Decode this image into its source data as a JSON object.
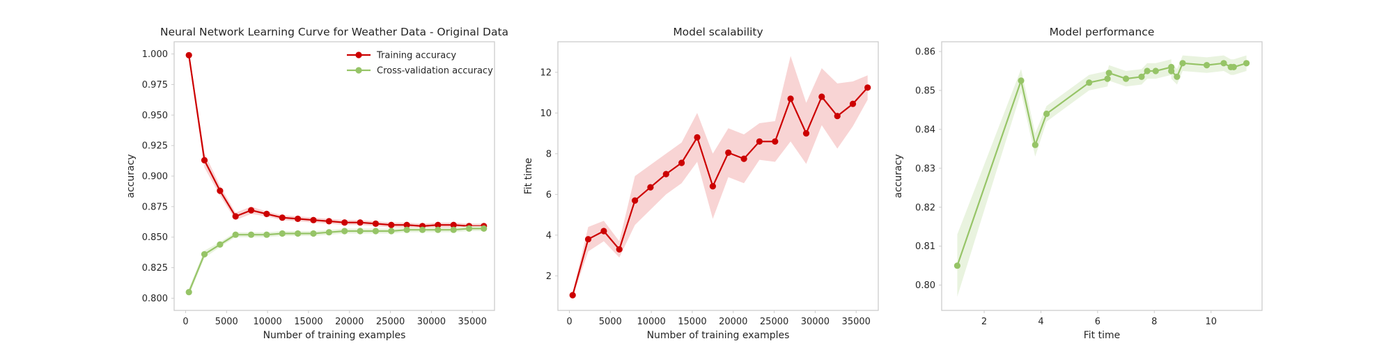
{
  "colors": {
    "train": "#cc0000",
    "train_band": "#f8d4d4",
    "cv": "#96c467",
    "cv_band": "#e9f3df",
    "frame": "#cccccc",
    "text": "#262626"
  },
  "chart_data": [
    {
      "type": "line",
      "title": "Neural Network Learning Curve for Weather Data - Original Data",
      "xlabel": "Number of training examples",
      "ylabel": "accuracy",
      "xlim": [
        -1400,
        37700
      ],
      "ylim": [
        0.79,
        1.01
      ],
      "xticks": [
        0,
        5000,
        10000,
        15000,
        20000,
        25000,
        30000,
        35000
      ],
      "xtick_labels": [
        "0",
        "5000",
        "10000",
        "15000",
        "20000",
        "25000",
        "30000",
        "35000"
      ],
      "yticks": [
        0.8,
        0.825,
        0.85,
        0.875,
        0.9,
        0.925,
        0.95,
        0.975,
        1.0
      ],
      "ytick_labels": [
        "0.800",
        "0.825",
        "0.850",
        "0.875",
        "0.900",
        "0.925",
        "0.950",
        "0.975",
        "1.000"
      ],
      "grid": false,
      "legend_position": "top-right",
      "x": [
        400,
        2300,
        4200,
        6100,
        8000,
        9900,
        11800,
        13700,
        15600,
        17500,
        19400,
        21300,
        23200,
        25100,
        27000,
        28900,
        30800,
        32700,
        34600,
        36400
      ],
      "series": [
        {
          "name": "Training accuracy",
          "color_key": "train",
          "values": [
            0.999,
            0.913,
            0.888,
            0.867,
            0.872,
            0.869,
            0.866,
            0.865,
            0.864,
            0.863,
            0.862,
            0.862,
            0.861,
            0.86,
            0.86,
            0.859,
            0.86,
            0.86,
            0.859,
            0.859
          ],
          "band": [
            0.003,
            0.006,
            0.004,
            0.003,
            0.003,
            0.002,
            0.002,
            0.002,
            0.002,
            0.002,
            0.002,
            0.002,
            0.002,
            0.002,
            0.002,
            0.002,
            0.002,
            0.002,
            0.002,
            0.002
          ]
        },
        {
          "name": "Cross-validation accuracy",
          "color_key": "cv",
          "values": [
            0.805,
            0.836,
            0.844,
            0.852,
            0.852,
            0.852,
            0.853,
            0.853,
            0.853,
            0.854,
            0.855,
            0.855,
            0.855,
            0.855,
            0.856,
            0.856,
            0.856,
            0.856,
            0.857,
            0.857
          ],
          "band": [
            0.003,
            0.003,
            0.002,
            0.002,
            0.002,
            0.002,
            0.002,
            0.002,
            0.002,
            0.002,
            0.002,
            0.002,
            0.002,
            0.002,
            0.002,
            0.002,
            0.002,
            0.002,
            0.002,
            0.002
          ]
        }
      ]
    },
    {
      "type": "line",
      "title": "Model scalability",
      "xlabel": "Number of training examples",
      "ylabel": "Fit time",
      "xlim": [
        -1400,
        37700
      ],
      "ylim": [
        0.3,
        13.5
      ],
      "xticks": [
        0,
        5000,
        10000,
        15000,
        20000,
        25000,
        30000,
        35000
      ],
      "xtick_labels": [
        "0",
        "5000",
        "10000",
        "15000",
        "20000",
        "25000",
        "30000",
        "35000"
      ],
      "yticks": [
        2,
        4,
        6,
        8,
        10,
        12
      ],
      "ytick_labels": [
        "2",
        "4",
        "6",
        "8",
        "10",
        "12"
      ],
      "grid": false,
      "x": [
        400,
        2300,
        4200,
        6100,
        8000,
        9900,
        11800,
        13700,
        15600,
        17500,
        19400,
        21300,
        23200,
        25100,
        27000,
        28900,
        30800,
        32700,
        34600,
        36400
      ],
      "series": [
        {
          "color_key": "train",
          "values": [
            1.05,
            3.8,
            4.2,
            3.3,
            5.7,
            6.35,
            7.0,
            7.55,
            8.8,
            6.4,
            8.05,
            7.75,
            8.6,
            8.6,
            10.7,
            9.0,
            10.8,
            9.85,
            10.45,
            11.25
          ],
          "band": [
            0.1,
            0.6,
            0.5,
            0.4,
            1.2,
            1.1,
            1.0,
            1.0,
            1.2,
            1.6,
            1.2,
            1.2,
            0.9,
            1.0,
            2.1,
            1.5,
            1.4,
            1.6,
            1.1,
            0.6
          ]
        }
      ]
    },
    {
      "type": "line",
      "title": "Model performance",
      "xlabel": "Fit time",
      "ylabel": "accuracy",
      "xlim": [
        0.5,
        11.8
      ],
      "ylim": [
        0.7935,
        0.8625
      ],
      "xticks": [
        2,
        4,
        6,
        8,
        10
      ],
      "xtick_labels": [
        "2",
        "4",
        "6",
        "8",
        "10"
      ],
      "yticks": [
        0.8,
        0.81,
        0.82,
        0.83,
        0.84,
        0.85,
        0.86
      ],
      "ytick_labels": [
        "0.80",
        "0.81",
        "0.82",
        "0.83",
        "0.84",
        "0.85",
        "0.86"
      ],
      "grid": false,
      "x": [
        1.05,
        3.3,
        3.8,
        4.2,
        5.7,
        6.35,
        6.4,
        7.0,
        7.55,
        7.75,
        8.05,
        8.6,
        8.6,
        8.8,
        9.0,
        9.85,
        10.45,
        10.7,
        10.8,
        11.25
      ],
      "series": [
        {
          "color_key": "cv",
          "values": [
            0.805,
            0.8525,
            0.836,
            0.844,
            0.852,
            0.853,
            0.8545,
            0.853,
            0.8535,
            0.855,
            0.855,
            0.856,
            0.855,
            0.8535,
            0.857,
            0.8565,
            0.857,
            0.856,
            0.856,
            0.857
          ],
          "band": [
            0.008,
            0.003,
            0.003,
            0.002,
            0.002,
            0.002,
            0.002,
            0.002,
            0.002,
            0.002,
            0.002,
            0.002,
            0.002,
            0.002,
            0.002,
            0.002,
            0.002,
            0.002,
            0.002,
            0.002
          ]
        }
      ]
    }
  ]
}
